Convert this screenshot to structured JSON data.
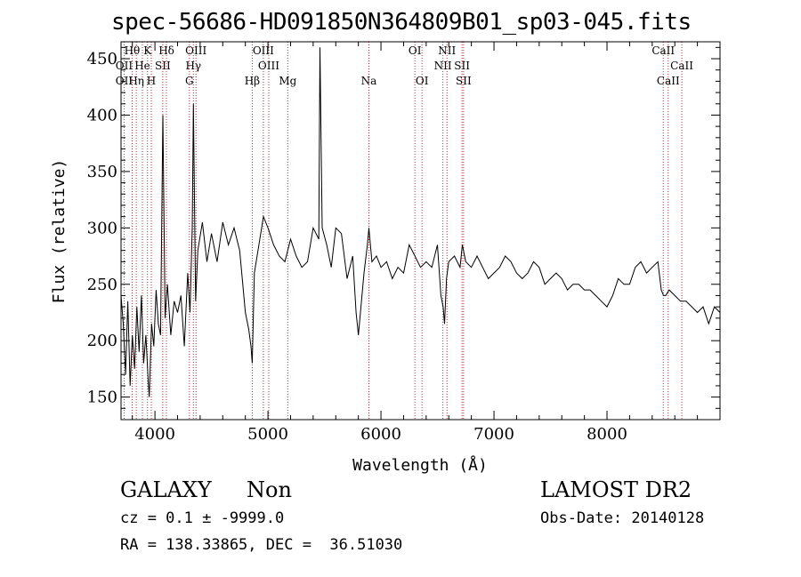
{
  "header": {
    "title": "spec-56686-HD091850N364809B01_sp03-045.fits"
  },
  "info": {
    "object_class": "GALAXY",
    "object_subclass": "Non",
    "survey": "LAMOST DR2",
    "redshift_line": "cz = 0.1 ± -9999.0",
    "obs_date_line": "Obs-Date: 20140128",
    "coords_line": "RA = 138.33865, DEC =  36.51030"
  },
  "chart_data": {
    "type": "line",
    "title": "spec-56686-HD091850N364809B01_sp03-045.fits",
    "xlabel": "Wavelength (Å)",
    "ylabel": "Flux (relative)",
    "xlim": [
      3700,
      9000
    ],
    "ylim": [
      130,
      465
    ],
    "x_ticks": [
      4000,
      5000,
      6000,
      7000,
      8000
    ],
    "y_ticks": [
      150,
      200,
      250,
      300,
      350,
      400,
      450
    ],
    "grid": false,
    "series": [
      {
        "color": "#000000",
        "x": [
          3700,
          3720,
          3740,
          3760,
          3780,
          3800,
          3820,
          3840,
          3860,
          3880,
          3900,
          3920,
          3940,
          3950,
          3970,
          3990,
          4010,
          4030,
          4050,
          4070,
          4090,
          4110,
          4140,
          4170,
          4200,
          4230,
          4260,
          4290,
          4310,
          4330,
          4340,
          4360,
          4380,
          4420,
          4460,
          4500,
          4550,
          4600,
          4650,
          4700,
          4750,
          4800,
          4830,
          4850,
          4861,
          4880,
          4920,
          4960,
          5000,
          5050,
          5100,
          5150,
          5200,
          5250,
          5300,
          5350,
          5400,
          5450,
          5460,
          5480,
          5520,
          5560,
          5600,
          5650,
          5700,
          5750,
          5780,
          5800,
          5850,
          5880,
          5893,
          5920,
          5960,
          6000,
          6050,
          6100,
          6150,
          6200,
          6250,
          6300,
          6350,
          6400,
          6450,
          6500,
          6530,
          6550,
          6563,
          6580,
          6600,
          6650,
          6700,
          6720,
          6750,
          6800,
          6850,
          6900,
          6950,
          7000,
          7050,
          7100,
          7150,
          7200,
          7250,
          7300,
          7350,
          7400,
          7450,
          7500,
          7550,
          7600,
          7650,
          7700,
          7750,
          7800,
          7850,
          7900,
          7950,
          8000,
          8050,
          8100,
          8150,
          8200,
          8250,
          8300,
          8350,
          8400,
          8450,
          8480,
          8500,
          8520,
          8550,
          8600,
          8650,
          8700,
          8750,
          8800,
          8850,
          8900,
          8950,
          9000
        ],
        "y": [
          240,
          215,
          170,
          235,
          160,
          205,
          175,
          230,
          190,
          240,
          180,
          205,
          165,
          150,
          215,
          195,
          245,
          215,
          205,
          400,
          220,
          250,
          205,
          235,
          225,
          240,
          195,
          260,
          225,
          300,
          410,
          235,
          280,
          305,
          270,
          295,
          270,
          305,
          285,
          300,
          280,
          225,
          210,
          195,
          180,
          260,
          285,
          310,
          300,
          285,
          275,
          270,
          290,
          275,
          265,
          270,
          300,
          290,
          460,
          300,
          285,
          265,
          300,
          295,
          255,
          275,
          225,
          205,
          260,
          285,
          300,
          270,
          275,
          265,
          270,
          255,
          265,
          260,
          285,
          275,
          265,
          270,
          265,
          285,
          240,
          230,
          215,
          255,
          270,
          275,
          265,
          285,
          270,
          265,
          275,
          265,
          255,
          260,
          265,
          275,
          270,
          260,
          255,
          260,
          270,
          265,
          250,
          255,
          260,
          255,
          245,
          250,
          250,
          245,
          245,
          240,
          235,
          230,
          240,
          255,
          250,
          250,
          265,
          270,
          260,
          265,
          270,
          245,
          240,
          240,
          245,
          240,
          235,
          235,
          230,
          225,
          230,
          215,
          230,
          225
        ]
      }
    ],
    "annotations": [
      {
        "label": "Hθ",
        "x": 3798,
        "row": 1
      },
      {
        "label": "K",
        "x": 3934,
        "row": 1
      },
      {
        "label": "Hδ",
        "x": 4102,
        "row": 1
      },
      {
        "label": "OIII",
        "x": 4363,
        "row": 1
      },
      {
        "label": "OIII",
        "x": 4959,
        "row": 1
      },
      {
        "label": "OI",
        "x": 6300,
        "row": 1
      },
      {
        "label": "NII",
        "x": 6584,
        "row": 1
      },
      {
        "label": "CaII",
        "x": 8498,
        "row": 1
      },
      {
        "label": "OII",
        "x": 3727,
        "row": 2
      },
      {
        "label": "He",
        "x": 3889,
        "row": 2
      },
      {
        "label": "SII",
        "x": 4069,
        "row": 2
      },
      {
        "label": "Hγ",
        "x": 4340,
        "row": 2
      },
      {
        "label": "OIII",
        "x": 5007,
        "row": 2
      },
      {
        "label": "NII",
        "x": 6548,
        "row": 2
      },
      {
        "label": "SII",
        "x": 6717,
        "row": 2
      },
      {
        "label": "CaII",
        "x": 8662,
        "row": 2
      },
      {
        "label": "OII",
        "x": 3727,
        "row": 3
      },
      {
        "label": "Hη",
        "x": 3835,
        "row": 3
      },
      {
        "label": "H",
        "x": 3968,
        "row": 3
      },
      {
        "label": "G",
        "x": 4305,
        "row": 3
      },
      {
        "label": "Hβ",
        "x": 4861,
        "row": 3
      },
      {
        "label": "Mg",
        "x": 5175,
        "row": 3
      },
      {
        "label": "Na",
        "x": 5893,
        "row": 3
      },
      {
        "label": "OI",
        "x": 6363,
        "row": 3
      },
      {
        "label": "SII",
        "x": 6731,
        "row": 3
      },
      {
        "label": "CaII",
        "x": 8542,
        "row": 3
      }
    ],
    "line_marker_color": "#b03030"
  }
}
